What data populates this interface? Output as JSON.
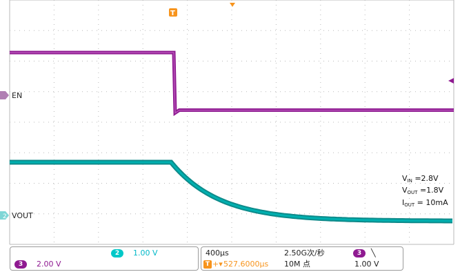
{
  "waveform": {
    "channels": [
      {
        "label": "EN",
        "marker": "",
        "color": "#8f1a91"
      },
      {
        "label": "VOUT",
        "marker": "2",
        "color": "#00b0b0"
      }
    ],
    "trigger_marker": "T",
    "annotation": {
      "vin_label": "V",
      "vin_sub": "IN",
      "vin_value": " =2.8V",
      "vout_label": "V",
      "vout_sub": "OUT",
      "vout_value": " =1.8V",
      "iout_label": "I",
      "iout_sub": "OUT",
      "iout_value": " = 10mA"
    }
  },
  "chart_data": {
    "type": "line",
    "x": [
      0,
      1,
      2,
      3,
      4,
      5,
      6,
      7,
      8,
      9,
      10
    ],
    "series": [
      {
        "name": "EN",
        "values": [
          3.3,
          3.3,
          3.3,
          3.3,
          3.3,
          0.7,
          0.7,
          0.7,
          0.7,
          0.7,
          0.7
        ]
      },
      {
        "name": "VOUT",
        "values": [
          1.8,
          1.8,
          1.8,
          1.8,
          1.8,
          1.2,
          0.75,
          0.45,
          0.3,
          0.25,
          0.25
        ]
      }
    ],
    "xlabel": "",
    "ylabel": "",
    "grid": true
  },
  "status": {
    "ch2_badge": "2",
    "ch2_scale": "1.00 V",
    "ch3_badge": "3",
    "ch3_scale": "2.00 V",
    "timebase": "400µs",
    "trig_icon": "T",
    "trig_arrow": "+▾",
    "trig_position": "527.6000µs",
    "sample_rate": "2.50G次/秒",
    "record_length": "10M 点",
    "trig_src_badge": "3",
    "trig_slope": "╲",
    "trig_level": "1.00 V"
  }
}
